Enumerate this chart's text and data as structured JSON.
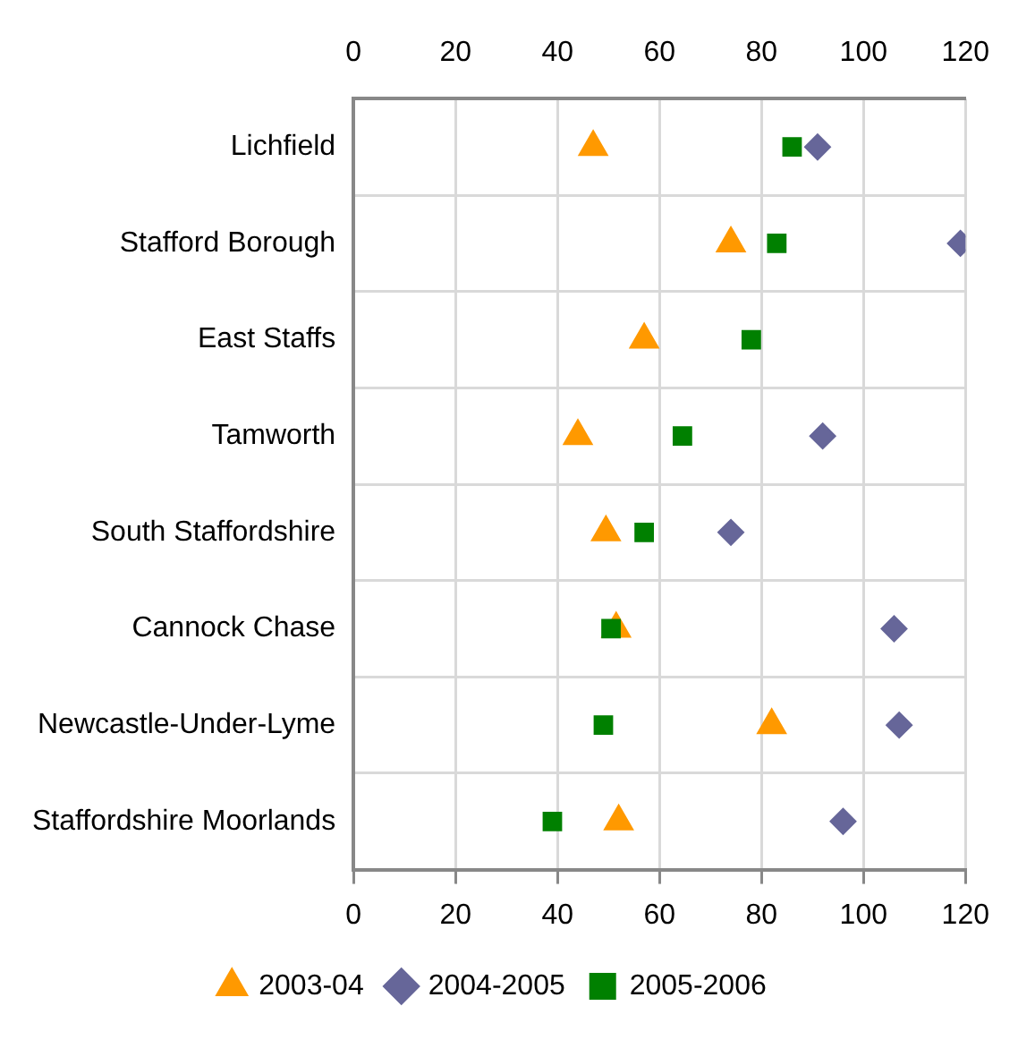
{
  "chart_data": {
    "type": "scatter",
    "orientation": "horizontal",
    "categories": [
      "Lichfield",
      "Stafford Borough",
      "East Staffs",
      "Tamworth",
      "South Staffordshire",
      "Cannock Chase",
      "Newcastle-Under-Lyme",
      "Staffordshire Moorlands"
    ],
    "series": [
      {
        "name": "2003-04",
        "color": "#ff9900",
        "marker": "triangle",
        "values": [
          47,
          74,
          57,
          44,
          49.5,
          51.5,
          82,
          52
        ]
      },
      {
        "name": "2004-2005",
        "color": "#666699",
        "marker": "diamond",
        "values": [
          91,
          119,
          null,
          92,
          74,
          106,
          107,
          96
        ]
      },
      {
        "name": "2005-2006",
        "color": "#008000",
        "marker": "square",
        "values": [
          86,
          83,
          78,
          64.5,
          57,
          50.5,
          49,
          39
        ]
      }
    ],
    "xlim": [
      0,
      120
    ],
    "xticks": [
      0,
      20,
      40,
      60,
      80,
      100,
      120
    ],
    "x2lim": [
      0,
      120
    ],
    "x2ticks": [
      0,
      20,
      40,
      60,
      80,
      100,
      120
    ],
    "grid": true,
    "legend": "bottom"
  }
}
